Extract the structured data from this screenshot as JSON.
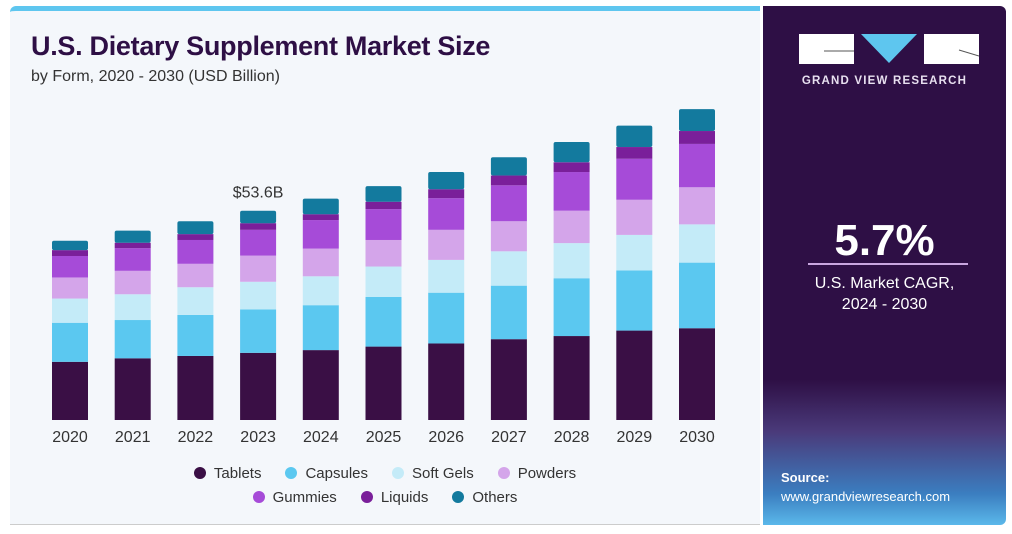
{
  "chart_data": {
    "type": "bar",
    "stacked": true,
    "title": "U.S. Dietary Supplement Market Size",
    "subtitle": "by Form, 2020 - 2030 (USD Billion)",
    "categories": [
      "2020",
      "2021",
      "2022",
      "2023",
      "2024",
      "2025",
      "2026",
      "2027",
      "2028",
      "2029",
      "2030"
    ],
    "series": [
      {
        "name": "Tablets",
        "color": "#3a0f45",
        "values": [
          14.9,
          15.8,
          16.4,
          17.2,
          17.9,
          18.8,
          19.6,
          20.7,
          21.5,
          22.9,
          23.5
        ]
      },
      {
        "name": "Capsules",
        "color": "#5bc8f0",
        "values": [
          10.0,
          9.8,
          10.5,
          11.1,
          11.5,
          12.7,
          13.0,
          13.7,
          14.8,
          15.4,
          16.8
        ]
      },
      {
        "name": "Soft Gels",
        "color": "#c4ebf8",
        "values": [
          6.2,
          6.6,
          7.1,
          7.1,
          7.4,
          7.8,
          8.4,
          8.8,
          9.0,
          9.1,
          9.8
        ]
      },
      {
        "name": "Powders",
        "color": "#d4a5ea",
        "values": [
          5.4,
          6.0,
          6.0,
          6.7,
          7.1,
          6.8,
          7.7,
          7.7,
          8.3,
          9.0,
          9.5
        ]
      },
      {
        "name": "Gummies",
        "color": "#a64bd8",
        "values": [
          5.5,
          5.8,
          6.1,
          6.6,
          7.3,
          7.9,
          8.1,
          9.2,
          9.9,
          10.5,
          11.1
        ]
      },
      {
        "name": "Liquids",
        "color": "#7a1f9a",
        "values": [
          1.5,
          1.4,
          1.5,
          1.7,
          1.5,
          1.9,
          2.3,
          2.5,
          2.5,
          3.0,
          3.3
        ]
      },
      {
        "name": "Others",
        "color": "#137a9e",
        "values": [
          2.4,
          3.1,
          3.3,
          3.2,
          4.0,
          4.0,
          4.4,
          4.7,
          5.2,
          5.5,
          5.6
        ]
      }
    ],
    "annotation": {
      "category": "2023",
      "label": "$53.6B"
    },
    "legend_position": "bottom",
    "grid": false
  },
  "panel": {
    "brand": "GRAND VIEW RESEARCH",
    "cagr_value": "5.7%",
    "cagr_label_line1": "U.S. Market CAGR,",
    "cagr_label_line2": "2024 - 2030",
    "source_label": "Source:",
    "source_url": "www.grandviewresearch.com",
    "background_color": "#2e0f45",
    "accent_color": "#5ec6ef"
  }
}
